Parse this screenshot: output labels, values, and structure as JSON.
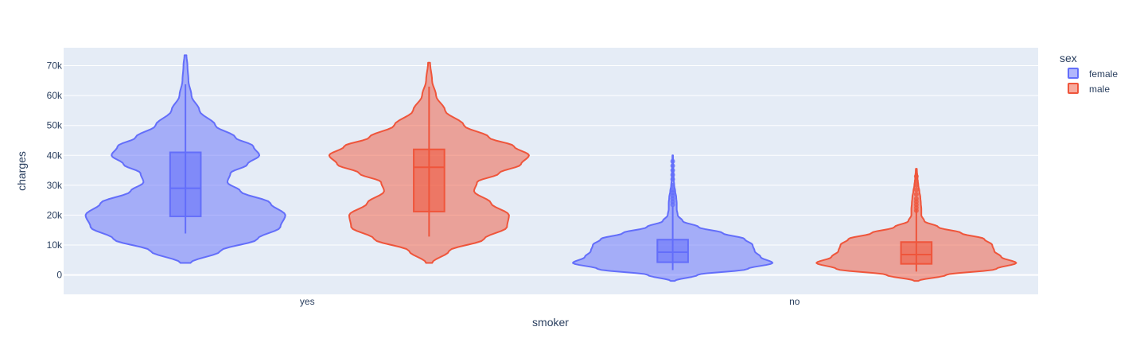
{
  "chart_data": {
    "type": "violin",
    "xlabel": "smoker",
    "ylabel": "charges",
    "categories": [
      "yes",
      "no"
    ],
    "ylim": [
      -6500,
      76000
    ],
    "yticks": [
      {
        "value": 0,
        "label": "0"
      },
      {
        "value": 10000,
        "label": "10k"
      },
      {
        "value": 20000,
        "label": "20k"
      },
      {
        "value": 30000,
        "label": "30k"
      },
      {
        "value": 40000,
        "label": "40k"
      },
      {
        "value": 50000,
        "label": "50k"
      },
      {
        "value": 60000,
        "label": "60k"
      },
      {
        "value": 70000,
        "label": "70k"
      }
    ],
    "grid": true,
    "legend": {
      "title": "sex",
      "placement": "top-right"
    },
    "series": [
      {
        "name": "female",
        "color": "#636efa",
        "groups": [
          {
            "category": "yes",
            "min": 13844,
            "q1": 19600,
            "median": 29000,
            "q3": 41000,
            "upper_fence": 63770,
            "max": 73500,
            "kde_min": 4000,
            "kde_max": 73500,
            "density": [
              [
                4000,
                0.05
              ],
              [
                8000,
                0.35
              ],
              [
                12000,
                0.72
              ],
              [
                16000,
                0.95
              ],
              [
                20000,
                1.0
              ],
              [
                24000,
                0.85
              ],
              [
                28000,
                0.55
              ],
              [
                31000,
                0.42
              ],
              [
                34000,
                0.45
              ],
              [
                37000,
                0.62
              ],
              [
                40000,
                0.74
              ],
              [
                43000,
                0.68
              ],
              [
                46000,
                0.5
              ],
              [
                50000,
                0.3
              ],
              [
                55000,
                0.14
              ],
              [
                60000,
                0.06
              ],
              [
                65000,
                0.03
              ],
              [
                70000,
                0.02
              ],
              [
                73500,
                0.01
              ]
            ],
            "outliers": []
          },
          {
            "category": "no",
            "min": 1607,
            "q1": 4250,
            "median": 7600,
            "q3": 11800,
            "upper_fence": 23000,
            "max": 40000,
            "kde_min": -2000,
            "kde_max": 40000,
            "density": [
              [
                -2000,
                0.02
              ],
              [
                0,
                0.25
              ],
              [
                2000,
                0.75
              ],
              [
                4000,
                1.0
              ],
              [
                6000,
                0.88
              ],
              [
                8000,
                0.82
              ],
              [
                10000,
                0.8
              ],
              [
                12000,
                0.72
              ],
              [
                14000,
                0.5
              ],
              [
                16000,
                0.26
              ],
              [
                18000,
                0.1
              ],
              [
                20000,
                0.05
              ],
              [
                22000,
                0.04
              ],
              [
                24000,
                0.04
              ],
              [
                26000,
                0.035
              ],
              [
                28000,
                0.025
              ],
              [
                30000,
                0.015
              ],
              [
                32000,
                0.01
              ],
              [
                34000,
                0.008
              ],
              [
                36000,
                0.006
              ],
              [
                38000,
                0.004
              ],
              [
                40000,
                0.003
              ]
            ],
            "outliers": [
              23500,
              24500,
              25500,
              26500,
              27500,
              28500,
              30000,
              32000,
              33500,
              35000,
              36500,
              38000
            ]
          }
        ]
      },
      {
        "name": "male",
        "color": "#ef553b",
        "groups": [
          {
            "category": "yes",
            "min": 12829,
            "q1": 21200,
            "median": 36000,
            "q3": 42000,
            "upper_fence": 63000,
            "max": 71000,
            "kde_min": 4000,
            "kde_max": 71000,
            "density": [
              [
                4000,
                0.03
              ],
              [
                8000,
                0.2
              ],
              [
                12000,
                0.55
              ],
              [
                16000,
                0.78
              ],
              [
                20000,
                0.8
              ],
              [
                24000,
                0.62
              ],
              [
                28000,
                0.45
              ],
              [
                31000,
                0.48
              ],
              [
                34000,
                0.7
              ],
              [
                37000,
                0.92
              ],
              [
                40000,
                1.0
              ],
              [
                43000,
                0.85
              ],
              [
                46000,
                0.6
              ],
              [
                50000,
                0.35
              ],
              [
                55000,
                0.16
              ],
              [
                60000,
                0.07
              ],
              [
                65000,
                0.03
              ],
              [
                71000,
                0.01
              ]
            ],
            "outliers": []
          },
          {
            "category": "no",
            "min": 1121,
            "q1": 3700,
            "median": 6800,
            "q3": 11000,
            "upper_fence": 22000,
            "max": 35500,
            "kde_min": -2000,
            "kde_max": 35500,
            "density": [
              [
                -2000,
                0.02
              ],
              [
                0,
                0.3
              ],
              [
                2000,
                0.8
              ],
              [
                4000,
                1.0
              ],
              [
                6000,
                0.85
              ],
              [
                8000,
                0.78
              ],
              [
                10000,
                0.76
              ],
              [
                12000,
                0.68
              ],
              [
                14000,
                0.45
              ],
              [
                16000,
                0.22
              ],
              [
                18000,
                0.08
              ],
              [
                20000,
                0.05
              ],
              [
                22000,
                0.05
              ],
              [
                24000,
                0.045
              ],
              [
                26000,
                0.04
              ],
              [
                28000,
                0.03
              ],
              [
                30000,
                0.02
              ],
              [
                32000,
                0.012
              ],
              [
                35500,
                0.005
              ]
            ],
            "outliers": [
              21500,
              22500,
              23500,
              24500,
              25500,
              27000,
              28500,
              30000,
              31500,
              33000
            ]
          }
        ]
      }
    ]
  }
}
